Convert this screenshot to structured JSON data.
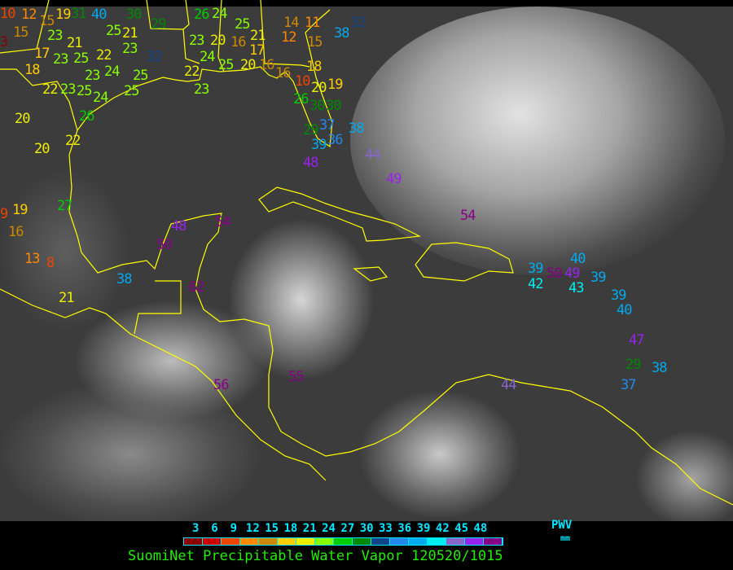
{
  "caption": "SuomiNet Precipitable Water Vapor 120520/1015",
  "legend": {
    "unit": "PWV",
    "unit_sub": "mm",
    "ticks": [
      "3",
      "6",
      "9",
      "12",
      "15",
      "18",
      "21",
      "24",
      "27",
      "30",
      "33",
      "36",
      "39",
      "42",
      "45",
      "48"
    ],
    "colors": [
      "#8b0000",
      "#cc0000",
      "#ee4400",
      "#ff8800",
      "#cc8800",
      "#ffcc00",
      "#eeee00",
      "#88ff00",
      "#00cc00",
      "#008800",
      "#114488",
      "#2288ee",
      "#00aaee",
      "#00eeee",
      "#8866cc",
      "#9922ee",
      "#880088"
    ]
  },
  "coastline_color": "#ffff00",
  "stations": [
    "10",
    "12",
    "15",
    "15",
    "3",
    "19",
    "31",
    "40",
    "23",
    "21",
    "17",
    "23",
    "25",
    "22",
    "23",
    "29",
    "32",
    "25",
    "21",
    "30",
    "26",
    "24",
    "25",
    "21",
    "20",
    "23",
    "24",
    "16",
    "17",
    "22",
    "25",
    "20",
    "16",
    "18",
    "23",
    "24",
    "25",
    "22",
    "23",
    "25",
    "24",
    "25",
    "20",
    "26",
    "20",
    "22",
    "23",
    "14",
    "11",
    "12",
    "15",
    "38",
    "32",
    "18",
    "16",
    "10",
    "20",
    "19",
    "26",
    "30",
    "30",
    "29",
    "37",
    "36",
    "38",
    "39",
    "48",
    "44",
    "49",
    "54",
    "39",
    "42",
    "50",
    "49",
    "40",
    "43",
    "39",
    "39",
    "40",
    "47",
    "29",
    "38",
    "37",
    "44",
    "9",
    "19",
    "16",
    "27",
    "13",
    "8",
    "21",
    "38",
    "48",
    "50",
    "54",
    "62",
    "56",
    "55"
  ]
}
